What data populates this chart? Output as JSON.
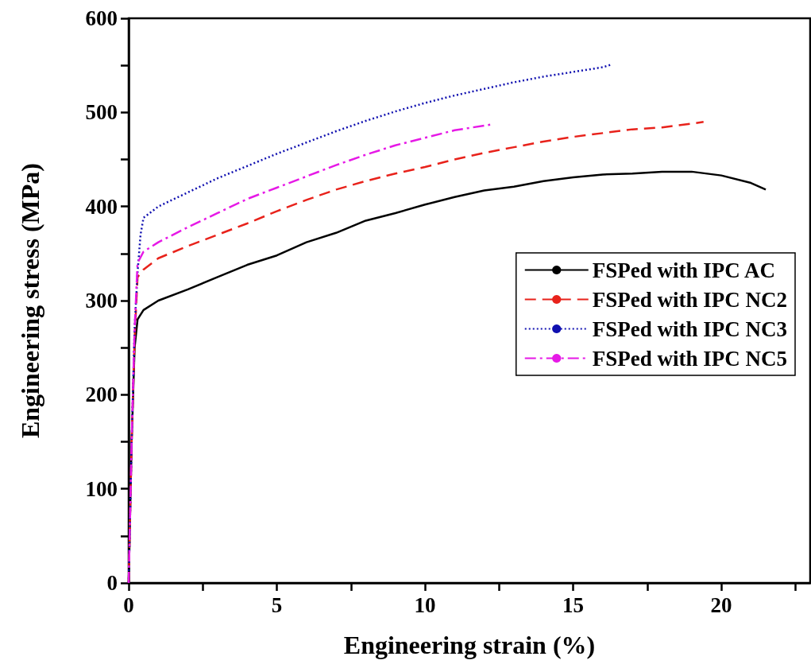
{
  "chart_data": {
    "type": "line",
    "xlabel": "Engineering strain (%)",
    "ylabel": "Engineering stress (MPa)",
    "xlim": [
      0,
      23
    ],
    "xticks": [
      0,
      {
        "value": 2.5,
        "label": null
      },
      5,
      {
        "value": 7.5,
        "label": null
      },
      10,
      {
        "value": 12.5,
        "label": null
      },
      15,
      {
        "value": 17.5,
        "label": null
      },
      20,
      {
        "value": 22.5,
        "label": null
      }
    ],
    "ylim": [
      0,
      600
    ],
    "yticks": [
      0,
      {
        "value": 50,
        "label": null
      },
      100,
      {
        "value": 150,
        "label": null
      },
      200,
      {
        "value": 250,
        "label": null
      },
      300,
      {
        "value": 350,
        "label": null
      },
      400,
      {
        "value": 450,
        "label": null
      },
      500,
      {
        "value": 550,
        "label": null
      },
      600
    ],
    "grid": false,
    "legend": "right",
    "marker": "none",
    "series": [
      {
        "name": "FSPed with IPC AC",
        "color": "#000000",
        "line_style": "solid",
        "x": [
          0,
          0.1,
          0.2,
          0.3,
          0.5,
          1,
          2,
          3,
          4,
          5,
          6,
          7,
          8,
          9,
          10,
          11,
          12,
          13,
          14,
          15,
          16,
          17,
          18,
          19,
          20,
          21,
          21.5
        ],
        "values": [
          0,
          150,
          250,
          280,
          290,
          300,
          312,
          325,
          338,
          348,
          362,
          372,
          385,
          393,
          402,
          410,
          417,
          421,
          427,
          431,
          434,
          435,
          437,
          437,
          433,
          425,
          418
        ]
      },
      {
        "name": "FSPed with IPC NC2",
        "color": "#e8221b",
        "line_style": "dashed",
        "x": [
          0,
          0.1,
          0.2,
          0.3,
          0.5,
          1,
          2,
          3,
          4,
          5,
          6,
          7,
          8,
          9,
          10,
          11,
          12,
          13,
          14,
          15,
          16,
          17,
          18,
          19,
          19.4
        ],
        "values": [
          0,
          150,
          260,
          325,
          333,
          345,
          358,
          370,
          382,
          395,
          407,
          418,
          427,
          435,
          442,
          450,
          457,
          463,
          469,
          474,
          478,
          482,
          484,
          488,
          490
        ]
      },
      {
        "name": "FSPed with IPC NC3",
        "color": "#1010b0",
        "line_style": "dotted",
        "x": [
          0,
          0.1,
          0.2,
          0.3,
          0.4,
          0.5,
          1,
          2,
          3,
          4,
          5,
          6,
          7,
          8,
          9,
          10,
          11,
          12,
          13,
          14,
          15,
          16,
          16.3
        ],
        "values": [
          0,
          150,
          270,
          330,
          370,
          388,
          400,
          415,
          430,
          443,
          456,
          468,
          480,
          491,
          501,
          510,
          518,
          525,
          532,
          538,
          543,
          548,
          551
        ]
      },
      {
        "name": "FSPed with IPC NC5",
        "color": "#e619e6",
        "line_style": "dashdot",
        "x": [
          0,
          0.1,
          0.2,
          0.3,
          0.5,
          1,
          2,
          3,
          4,
          5,
          6,
          7,
          8,
          9,
          10,
          11,
          12.2
        ],
        "values": [
          0,
          150,
          270,
          340,
          352,
          362,
          378,
          393,
          408,
          420,
          432,
          444,
          455,
          465,
          473,
          481,
          487
        ]
      }
    ]
  }
}
